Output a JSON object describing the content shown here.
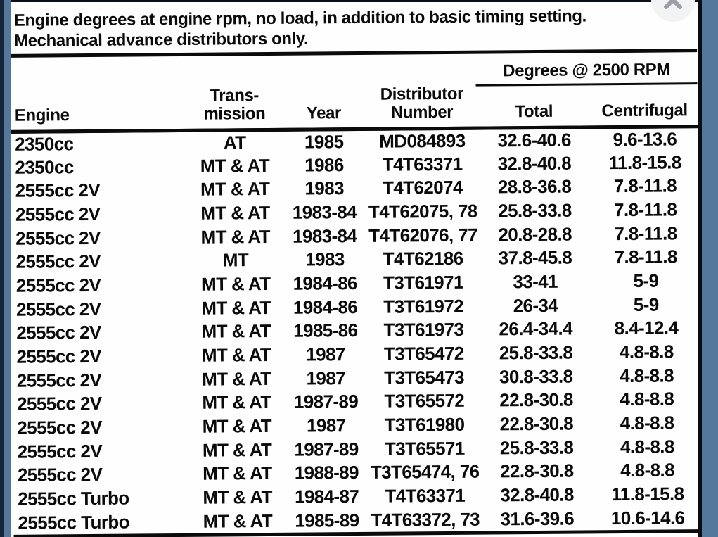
{
  "viewer": {
    "close_icon": "✕"
  },
  "colors": {
    "viewer_background": "#54779c",
    "viewer_left_edge": "#17263c",
    "page_background": "#fefefe",
    "scan_border": "#0a0d12",
    "text_color": "#0b0b0b",
    "close_button_bg": "#f1f3f4",
    "close_icon_color": "#9aa0a6"
  },
  "document": {
    "title_line1": "Engine degrees at engine rpm, no load, in addition to basic timing setting.",
    "title_line2": "Mechanical advance distributors only."
  },
  "table": {
    "group_header": "Degrees @ 2500 RPM",
    "headers": {
      "engine": "Engine",
      "transmission_line1": "Trans-",
      "transmission_line2": "mission",
      "year": "Year",
      "distributor_line1": "Distributor",
      "distributor_line2": "Number",
      "total": "Total",
      "centrifugal": "Centrifugal"
    },
    "rows": [
      [
        "2350cc",
        "AT",
        "1985",
        "MD084893",
        "32.6-40.6",
        "9.6-13.6"
      ],
      [
        "2350cc",
        "MT & AT",
        "1986",
        "T4T63371",
        "32.8-40.8",
        "11.8-15.8"
      ],
      [
        "2555cc 2V",
        "MT & AT",
        "1983",
        "T4T62074",
        "28.8-36.8",
        "7.8-11.8"
      ],
      [
        "2555cc 2V",
        "MT & AT",
        "1983-84",
        "T4T62075, 78",
        "25.8-33.8",
        "7.8-11.8"
      ],
      [
        "2555cc 2V",
        "MT & AT",
        "1983-84",
        "T4T62076, 77",
        "20.8-28.8",
        "7.8-11.8"
      ],
      [
        "2555cc 2V",
        "MT",
        "1983",
        "T4T62186",
        "37.8-45.8",
        "7.8-11.8"
      ],
      [
        "2555cc 2V",
        "MT & AT",
        "1984-86",
        "T3T61971",
        "33-41",
        "5-9"
      ],
      [
        "2555cc 2V",
        "MT & AT",
        "1984-86",
        "T3T61972",
        "26-34",
        "5-9"
      ],
      [
        "2555cc 2V",
        "MT & AT",
        "1985-86",
        "T3T61973",
        "26.4-34.4",
        "8.4-12.4"
      ],
      [
        "2555cc 2V",
        "MT & AT",
        "1987",
        "T3T65472",
        "25.8-33.8",
        "4.8-8.8"
      ],
      [
        "2555cc 2V",
        "MT & AT",
        "1987",
        "T3T65473",
        "30.8-33.8",
        "4.8-8.8"
      ],
      [
        "2555cc 2V",
        "MT & AT",
        "1987-89",
        "T3T65572",
        "22.8-30.8",
        "4.8-8.8"
      ],
      [
        "2555cc 2V",
        "MT & AT",
        "1987",
        "T3T61980",
        "22.8-30.8",
        "4.8-8.8"
      ],
      [
        "2555cc 2V",
        "MT & AT",
        "1987-89",
        "T3T65571",
        "25.8-33.8",
        "4.8-8.8"
      ],
      [
        "2555cc 2V",
        "MT & AT",
        "1988-89",
        "T3T65474, 76",
        "22.8-30.8",
        "4.8-8.8"
      ],
      [
        "2555cc Turbo",
        "MT & AT",
        "1984-87",
        "T4T63371",
        "32.8-40.8",
        "11.8-15.8"
      ],
      [
        "2555cc Turbo",
        "MT & AT",
        "1985-89",
        "T4T63372, 73",
        "31.6-39.6",
        "10.6-14.6"
      ]
    ]
  }
}
